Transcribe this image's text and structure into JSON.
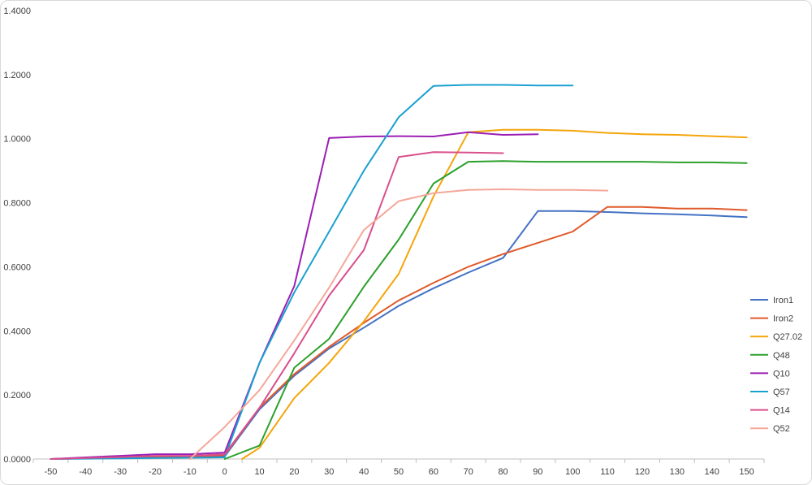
{
  "chart_data": {
    "type": "line",
    "title": "",
    "xlabel": "",
    "ylabel": "",
    "xlim": [
      -55,
      155
    ],
    "ylim": [
      0,
      1.4
    ],
    "x_ticks": [
      -50,
      -40,
      -30,
      -20,
      -10,
      0,
      10,
      20,
      30,
      40,
      50,
      60,
      70,
      80,
      90,
      100,
      110,
      120,
      130,
      140,
      150
    ],
    "x_tick_labels": [
      "-50",
      "-40",
      "-30",
      "-20",
      "-10",
      "0",
      "10",
      "20",
      "30",
      "40",
      "50",
      "60",
      "70",
      "80",
      "90",
      "100",
      "110",
      "120",
      "130",
      "140",
      "150"
    ],
    "y_ticks": [
      0,
      0.2,
      0.4,
      0.6,
      0.8,
      1.0,
      1.2,
      1.4
    ],
    "y_tick_labels": [
      "0.0000",
      "0.2000",
      "0.4000",
      "0.6000",
      "0.8000",
      "1.0000",
      "1.2000",
      "1.4000"
    ],
    "grid": false,
    "legend_position": "right",
    "series": [
      {
        "name": "Iron1",
        "color": "#4472C4",
        "points": [
          [
            -50,
            0.0
          ],
          [
            -40,
            0.002
          ],
          [
            -30,
            0.004
          ],
          [
            -20,
            0.005
          ],
          [
            -10,
            0.006
          ],
          [
            0,
            0.008
          ],
          [
            10,
            0.155
          ],
          [
            20,
            0.26
          ],
          [
            30,
            0.345
          ],
          [
            40,
            0.41
          ],
          [
            50,
            0.478
          ],
          [
            60,
            0.533
          ],
          [
            70,
            0.582
          ],
          [
            80,
            0.628
          ],
          [
            90,
            0.774
          ],
          [
            100,
            0.774
          ],
          [
            110,
            0.771
          ],
          [
            120,
            0.767
          ],
          [
            130,
            0.764
          ],
          [
            140,
            0.76
          ],
          [
            150,
            0.755
          ]
        ]
      },
      {
        "name": "Iron2",
        "color": "#E05A2B",
        "points": [
          [
            -50,
            0.0
          ],
          [
            -40,
            0.002
          ],
          [
            -30,
            0.004
          ],
          [
            -20,
            0.006
          ],
          [
            -10,
            0.008
          ],
          [
            0,
            0.012
          ],
          [
            10,
            0.16
          ],
          [
            20,
            0.265
          ],
          [
            30,
            0.35
          ],
          [
            40,
            0.425
          ],
          [
            50,
            0.495
          ],
          [
            60,
            0.55
          ],
          [
            70,
            0.6
          ],
          [
            80,
            0.64
          ],
          [
            90,
            0.675
          ],
          [
            100,
            0.71
          ],
          [
            110,
            0.787
          ],
          [
            120,
            0.787
          ],
          [
            130,
            0.782
          ],
          [
            140,
            0.782
          ],
          [
            150,
            0.777
          ]
        ]
      },
      {
        "name": "Q27.02",
        "color": "#F5A50A",
        "points": [
          [
            5,
            0.0
          ],
          [
            10,
            0.035
          ],
          [
            20,
            0.19
          ],
          [
            30,
            0.3
          ],
          [
            40,
            0.43
          ],
          [
            50,
            0.578
          ],
          [
            60,
            0.82
          ],
          [
            70,
            1.02
          ],
          [
            80,
            1.028
          ],
          [
            90,
            1.028
          ],
          [
            100,
            1.025
          ],
          [
            110,
            1.018
          ],
          [
            120,
            1.014
          ],
          [
            130,
            1.012
          ],
          [
            140,
            1.008
          ],
          [
            150,
            1.004
          ]
        ]
      },
      {
        "name": "Q48",
        "color": "#2CA02C",
        "points": [
          [
            0,
            0.0
          ],
          [
            10,
            0.042
          ],
          [
            20,
            0.285
          ],
          [
            30,
            0.375
          ],
          [
            40,
            0.538
          ],
          [
            50,
            0.685
          ],
          [
            60,
            0.86
          ],
          [
            70,
            0.928
          ],
          [
            80,
            0.93
          ],
          [
            90,
            0.928
          ],
          [
            100,
            0.928
          ],
          [
            110,
            0.928
          ],
          [
            120,
            0.928
          ],
          [
            130,
            0.926
          ],
          [
            140,
            0.926
          ],
          [
            150,
            0.924
          ]
        ]
      },
      {
        "name": "Q10",
        "color": "#9B1FB4",
        "points": [
          [
            -50,
            0.0
          ],
          [
            -40,
            0.005
          ],
          [
            -30,
            0.01
          ],
          [
            -20,
            0.015
          ],
          [
            -10,
            0.015
          ],
          [
            0,
            0.02
          ],
          [
            10,
            0.3
          ],
          [
            20,
            0.54
          ],
          [
            30,
            1.002
          ],
          [
            40,
            1.007
          ],
          [
            50,
            1.008
          ],
          [
            60,
            1.007
          ],
          [
            70,
            1.02
          ],
          [
            80,
            1.012
          ],
          [
            90,
            1.014
          ]
        ]
      },
      {
        "name": "Q57",
        "color": "#1AA0D0",
        "points": [
          [
            -50,
            0.0
          ],
          [
            -40,
            0.001
          ],
          [
            -30,
            0.002
          ],
          [
            -20,
            0.003
          ],
          [
            -10,
            0.004
          ],
          [
            0,
            0.005
          ],
          [
            10,
            0.3
          ],
          [
            20,
            0.52
          ],
          [
            30,
            0.71
          ],
          [
            40,
            0.9
          ],
          [
            50,
            1.067
          ],
          [
            60,
            1.165
          ],
          [
            70,
            1.168
          ],
          [
            80,
            1.168
          ],
          [
            90,
            1.166
          ],
          [
            100,
            1.166
          ]
        ]
      },
      {
        "name": "Q14",
        "color": "#D94F8C",
        "points": [
          [
            -50,
            0.0
          ],
          [
            -40,
            0.003
          ],
          [
            -30,
            0.006
          ],
          [
            -20,
            0.01
          ],
          [
            -10,
            0.01
          ],
          [
            0,
            0.015
          ],
          [
            10,
            0.16
          ],
          [
            20,
            0.33
          ],
          [
            30,
            0.51
          ],
          [
            40,
            0.652
          ],
          [
            50,
            0.943
          ],
          [
            60,
            0.958
          ],
          [
            70,
            0.957
          ],
          [
            80,
            0.955
          ]
        ]
      },
      {
        "name": "Q52",
        "color": "#F4A79A",
        "points": [
          [
            -10,
            0.0
          ],
          [
            0,
            0.1
          ],
          [
            10,
            0.215
          ],
          [
            20,
            0.37
          ],
          [
            30,
            0.535
          ],
          [
            40,
            0.715
          ],
          [
            50,
            0.805
          ],
          [
            60,
            0.83
          ],
          [
            70,
            0.84
          ],
          [
            80,
            0.842
          ],
          [
            90,
            0.84
          ],
          [
            100,
            0.84
          ],
          [
            110,
            0.838
          ]
        ]
      }
    ]
  }
}
